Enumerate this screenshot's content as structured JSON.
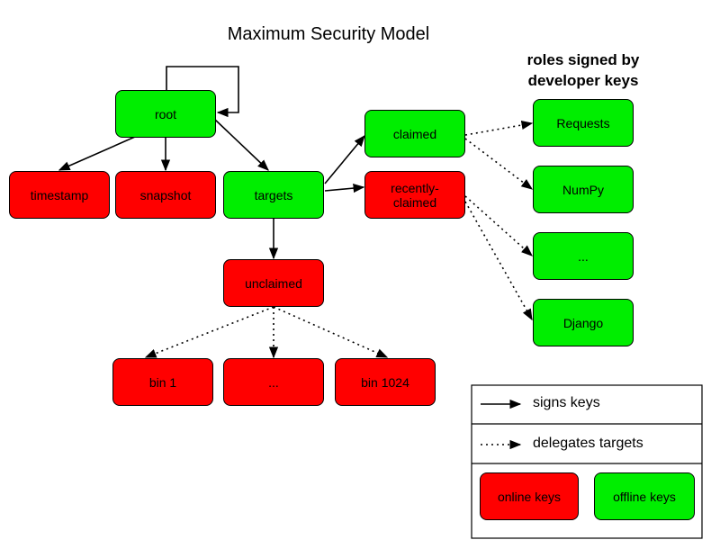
{
  "title": "Maximum Security Model",
  "note": "roles signed by developer keys",
  "nodes": [
    {
      "label": "root"
    },
    {
      "label": "timestamp"
    },
    {
      "label": "snapshot"
    },
    {
      "label": "targets"
    },
    {
      "label": "claimed"
    },
    {
      "label": "recently-claimed"
    },
    {
      "label": "unclaimed"
    },
    {
      "label": "bin 1"
    },
    {
      "label": "..."
    },
    {
      "label": "bin 1024"
    },
    {
      "label": "Requests"
    },
    {
      "label": "NumPy"
    },
    {
      "label": "..."
    },
    {
      "label": "Django"
    }
  ],
  "legend": {
    "signs": "signs keys",
    "delegates": "delegates targets",
    "online": "online keys",
    "offline": "offline keys"
  }
}
